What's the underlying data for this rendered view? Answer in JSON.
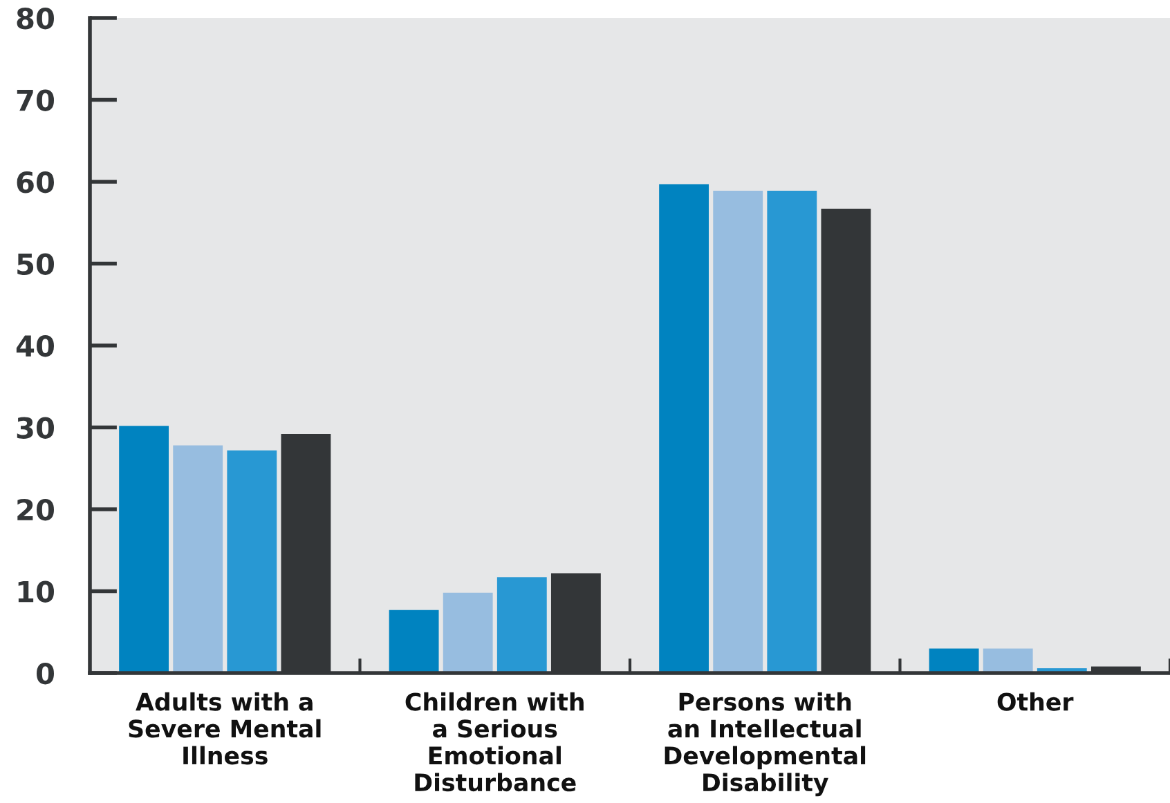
{
  "chart_data": {
    "type": "bar",
    "categories": [
      "Adults with a\nSevere Mental\nIllness",
      "Children with\na Serious\nEmotional\nDisturbance",
      "Persons with\nan Intellectual\nDevelopmental\nDisability",
      "Other"
    ],
    "series": [
      {
        "color": "#0083c0",
        "values": [
          30.2,
          7.7,
          59.7,
          3.0
        ]
      },
      {
        "color": "#97bde0",
        "values": [
          27.8,
          9.8,
          58.9,
          3.0
        ]
      },
      {
        "color": "#2898d3",
        "values": [
          27.2,
          11.7,
          58.9,
          0.6
        ]
      },
      {
        "color": "#333638",
        "values": [
          29.2,
          12.2,
          56.7,
          0.8
        ]
      }
    ],
    "ylim": [
      0,
      80
    ],
    "yticks": [
      0,
      10,
      20,
      30,
      40,
      50,
      60,
      70,
      80
    ],
    "grid": false,
    "legend": false
  }
}
